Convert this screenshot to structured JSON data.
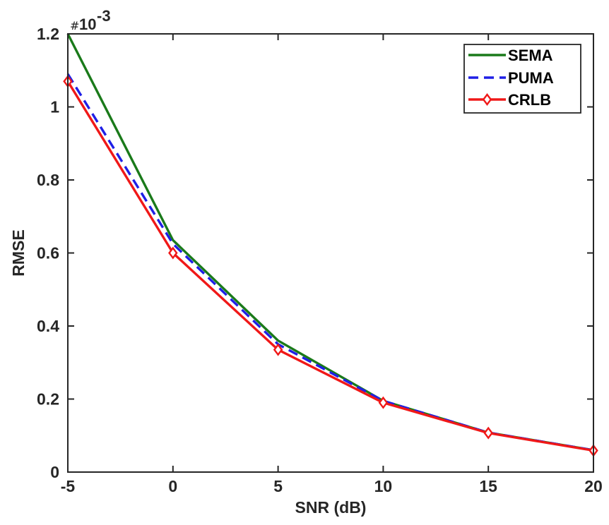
{
  "chart_data": {
    "type": "line",
    "title": "",
    "xlabel": "SNR (dB)",
    "ylabel": "RMSE",
    "y_multiplier_prefix": "#",
    "y_multiplier_base": "10",
    "y_multiplier_exponent": "-3",
    "xlim": [
      -5,
      20
    ],
    "ylim": [
      0,
      1.2
    ],
    "x_ticks": [
      -5,
      0,
      5,
      10,
      15,
      20
    ],
    "x_tick_labels": [
      "-5",
      "0",
      "5",
      "10",
      "15",
      "20"
    ],
    "y_ticks": [
      0,
      0.2,
      0.4,
      0.6,
      0.8,
      1,
      1.2
    ],
    "y_tick_labels": [
      "0",
      "0.2",
      "0.4",
      "0.6",
      "0.8",
      "1",
      "1.2"
    ],
    "grid": false,
    "legend_position": "top-right",
    "x": [
      -5,
      0,
      5,
      10,
      15,
      20
    ],
    "series": [
      {
        "name": "SEMA",
        "values": [
          1.2,
          0.635,
          0.36,
          0.195,
          0.108,
          0.06
        ],
        "color": "#1a7a1a",
        "style": "solid",
        "marker": "none"
      },
      {
        "name": "PUMA",
        "values": [
          1.09,
          0.625,
          0.35,
          0.195,
          0.108,
          0.06
        ],
        "color": "#1f1fe6",
        "style": "dashed",
        "marker": "none"
      },
      {
        "name": "CRLB",
        "values": [
          1.07,
          0.6,
          0.335,
          0.19,
          0.107,
          0.059
        ],
        "color": "#f01818",
        "style": "solid",
        "marker": "diamond"
      }
    ]
  }
}
